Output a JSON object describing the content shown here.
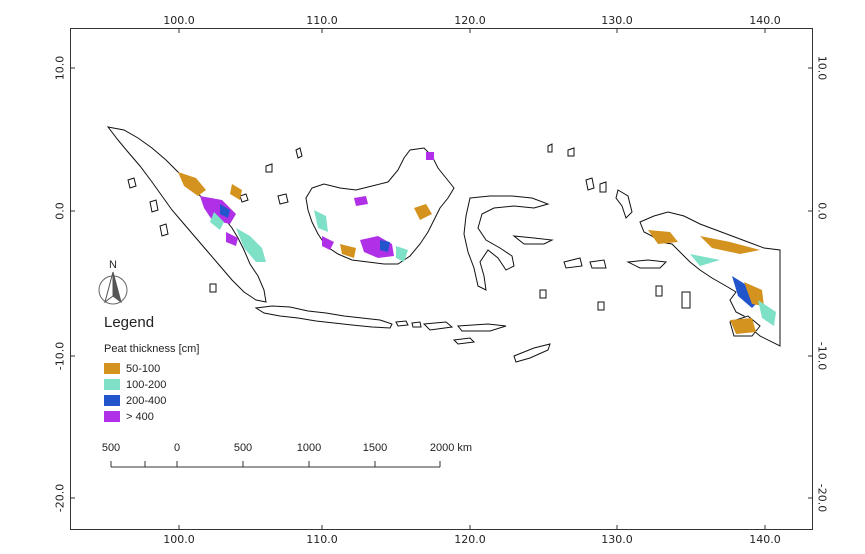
{
  "axes": {
    "top_ticks": [
      "100.0",
      "110.0",
      "120.0",
      "130.0",
      "140.0"
    ],
    "bottom_ticks": [
      "100.0",
      "110.0",
      "120.0",
      "130.0",
      "140.0"
    ],
    "left_ticks": [
      "10.0",
      "0.0",
      "-10.0",
      "-20.0"
    ],
    "right_ticks": [
      "10.0",
      "0.0",
      "-10.0",
      "-20.0"
    ]
  },
  "north_arrow": {
    "label": "N",
    "icon": "north-arrow-icon"
  },
  "legend": {
    "title": "Legend",
    "subtitle": "Peat thickness [cm]",
    "items": [
      {
        "label": "50-100",
        "color": "#d4921e"
      },
      {
        "label": "100-200",
        "color": "#7fe0c8"
      },
      {
        "label": "200-400",
        "color": "#2255cc"
      },
      {
        "label": "> 400",
        "color": "#b030e8"
      }
    ]
  },
  "scale_bar": {
    "labels": [
      "500",
      "0",
      "500",
      "1000",
      "1500",
      "2000 km"
    ]
  }
}
